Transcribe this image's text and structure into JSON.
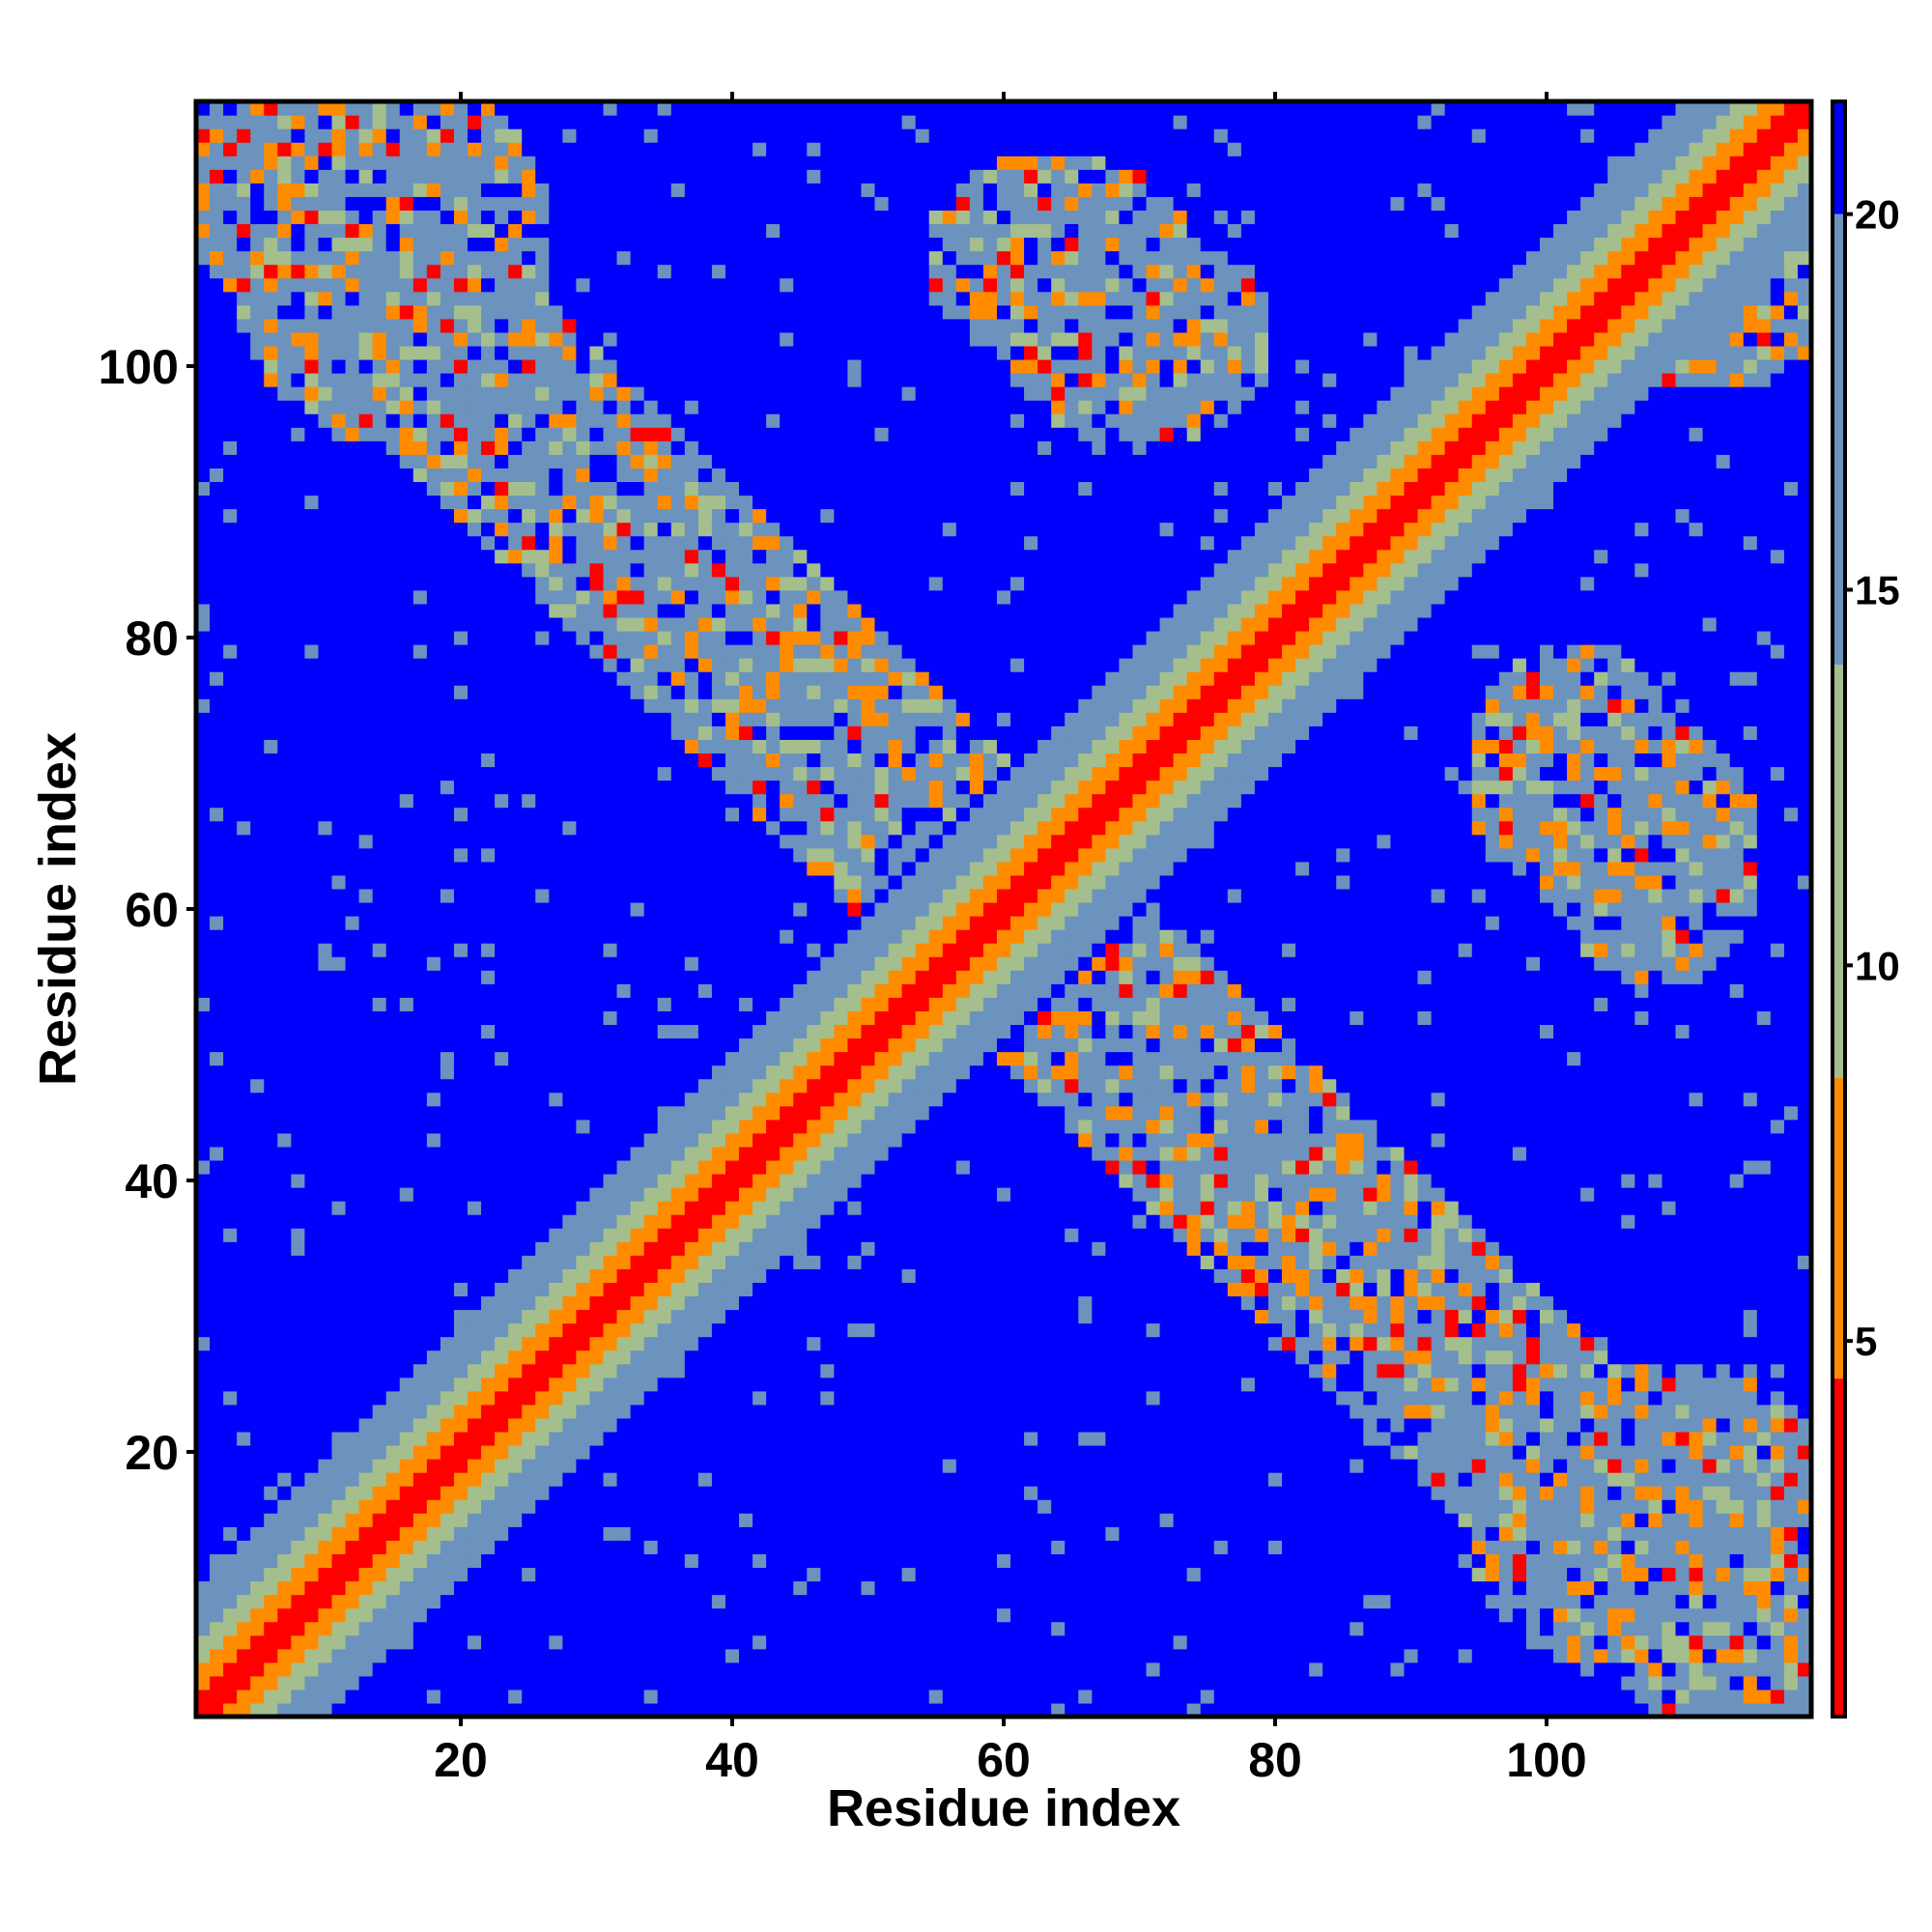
{
  "chart_data": {
    "type": "heatmap",
    "title": "",
    "xlabel": "Residue index",
    "ylabel": "Residue index",
    "n_residues": 119,
    "xlim": [
      0.5,
      119.5
    ],
    "ylim": [
      0.5,
      119.5
    ],
    "xticks": [
      20,
      40,
      60,
      80,
      100
    ],
    "yticks": [
      20,
      40,
      60,
      80,
      100
    ],
    "colorbar": {
      "ticks": [
        5,
        10,
        15,
        20
      ],
      "range": [
        0,
        21.5
      ],
      "cutoff": 20,
      "position": "right",
      "colors": {
        "near": "#ff0000",
        "mid": "#ff8c00",
        "sage": "#a4bf8d",
        "steel": "#6b93bd",
        "far": "#0000ff"
      }
    },
    "description_values": {
      "diagonal_distance": 3.8,
      "helix_neighbor_distance": 6,
      "band_width_residues": 12,
      "secondary_band_anti_diagonal_center": 120
    }
  }
}
